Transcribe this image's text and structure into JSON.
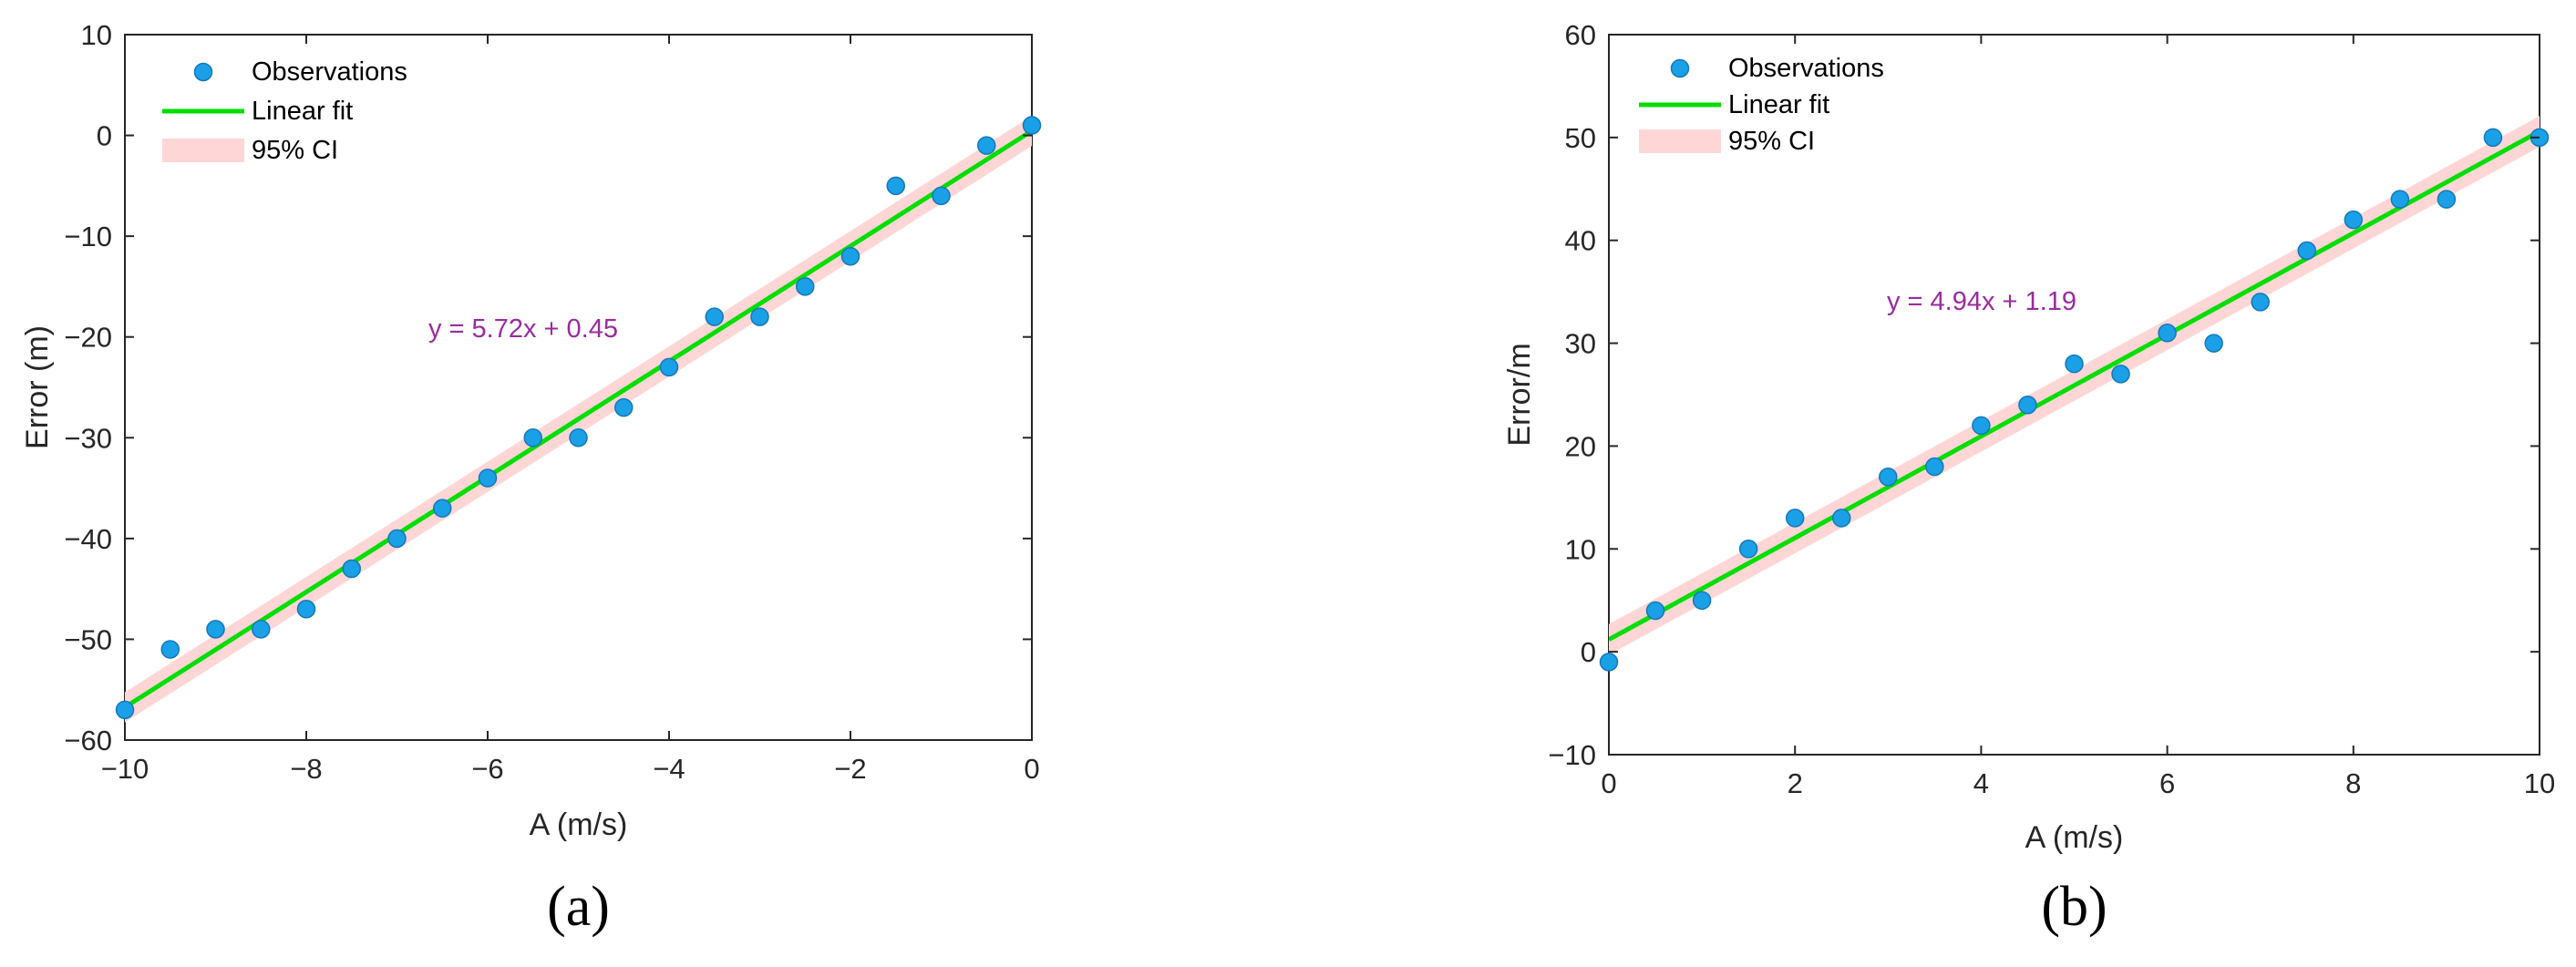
{
  "colors": {
    "observations": "#1aa0e6",
    "fit": "#00dd00",
    "ci": "#ffd6d6",
    "annotation": "#9a2ba0",
    "axis": "#262626"
  },
  "chart_data": [
    {
      "type": "scatter",
      "panel_label": "(a)",
      "xlabel": "A (m/s)",
      "ylabel": "Error (m)",
      "xlim": [
        -10,
        0
      ],
      "ylim": [
        -60,
        10
      ],
      "xticks": [
        -10,
        -8,
        -6,
        -4,
        -2,
        0
      ],
      "xtick_labels": [
        "−10",
        "−8",
        "−6",
        "−4",
        "−2",
        "0"
      ],
      "yticks": [
        -60,
        -50,
        -40,
        -30,
        -20,
        -10,
        0,
        10
      ],
      "ytick_labels": [
        "−60",
        "−50",
        "−40",
        "−30",
        "−20",
        "−10",
        "0",
        "10"
      ],
      "legend": {
        "placement": "top-left",
        "entries": [
          "Observations",
          "Linear fit",
          "95% CI"
        ]
      },
      "equation": "y = 5.72x + 0.45",
      "fit": {
        "slope": 5.72,
        "intercept": 0.45,
        "ci_halfwidth": 1.5
      },
      "series": [
        {
          "name": "Observations",
          "x": [
            -10,
            -9.5,
            -9,
            -8.5,
            -8,
            -7.5,
            -7,
            -6.5,
            -6,
            -5.5,
            -5,
            -4.5,
            -4,
            -3.5,
            -3,
            -2.5,
            -2,
            -1.5,
            -1,
            -0.5,
            0
          ],
          "y": [
            -57,
            -51,
            -49,
            -49,
            -47,
            -43,
            -40,
            -37,
            -34,
            -30,
            -30,
            -27,
            -23,
            -18,
            -18,
            -15,
            -12,
            -5,
            -6,
            -1,
            1
          ]
        }
      ]
    },
    {
      "type": "scatter",
      "panel_label": "(b)",
      "xlabel": "A (m/s)",
      "ylabel": "Error/m",
      "xlim": [
        0,
        10
      ],
      "ylim": [
        -10,
        60
      ],
      "xticks": [
        0,
        2,
        4,
        6,
        8,
        10
      ],
      "xtick_labels": [
        "0",
        "2",
        "4",
        "6",
        "8",
        "10"
      ],
      "yticks": [
        -10,
        0,
        10,
        20,
        30,
        40,
        50,
        60
      ],
      "ytick_labels": [
        "−10",
        "0",
        "10",
        "20",
        "30",
        "40",
        "50",
        "60"
      ],
      "legend": {
        "placement": "top-left",
        "entries": [
          "Observations",
          "Linear fit",
          "95% CI"
        ]
      },
      "equation": "y = 4.94x + 1.19",
      "fit": {
        "slope": 4.94,
        "intercept": 1.19,
        "ci_halfwidth": 1.5
      },
      "series": [
        {
          "name": "Observations",
          "x": [
            0,
            0.5,
            1,
            1.5,
            2,
            2.5,
            3,
            3.5,
            4,
            4.5,
            5,
            5.5,
            6,
            6.5,
            7,
            7.5,
            8,
            8.5,
            9,
            9.5,
            10
          ],
          "y": [
            -1,
            4,
            5,
            10,
            13,
            13,
            17,
            18,
            22,
            24,
            28,
            27,
            31,
            30,
            34,
            39,
            42,
            44,
            44,
            50,
            50
          ]
        }
      ]
    }
  ]
}
